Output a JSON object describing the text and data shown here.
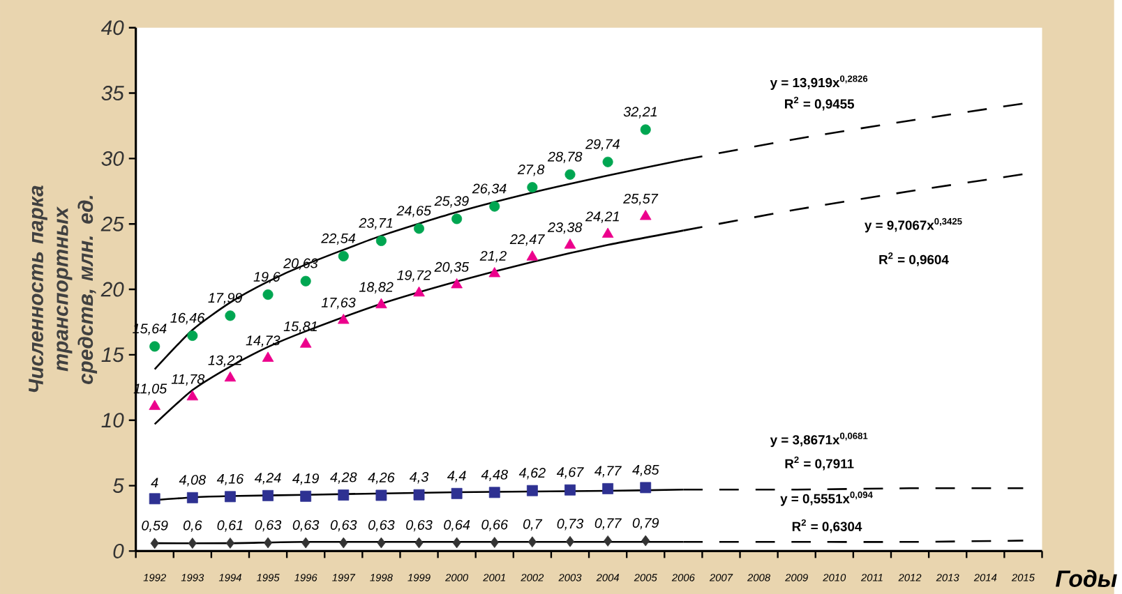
{
  "chart_data": {
    "type": "scatter",
    "xlabel": "Годы",
    "ylabel": "Численность парка транспортных средств, млн. ед.",
    "xlim": [
      1991.5,
      2015.5
    ],
    "ylim": [
      0,
      40
    ],
    "yticks": [
      0,
      5,
      10,
      15,
      20,
      25,
      30,
      35,
      40
    ],
    "xticks": [
      1992,
      1993,
      1994,
      1995,
      1996,
      1997,
      1998,
      1999,
      2000,
      2001,
      2002,
      2003,
      2004,
      2005,
      2006,
      2007,
      2008,
      2009,
      2010,
      2011,
      2012,
      2013,
      2014,
      2015,
      {
        "value": 1991.5,
        "label": null
      },
      {
        "value": 1992.5,
        "label": null
      },
      {
        "value": 1993.5,
        "label": null
      },
      {
        "value": 1994.5,
        "label": null
      },
      {
        "value": 1995.5,
        "label": null
      },
      {
        "value": 1996.5,
        "label": null
      },
      {
        "value": 1997.5,
        "label": null
      },
      {
        "value": 1998.5,
        "label": null
      },
      {
        "value": 1999.5,
        "label": null
      },
      {
        "value": 2000.5,
        "label": null
      },
      {
        "value": 2001.5,
        "label": null
      },
      {
        "value": 2002.5,
        "label": null
      },
      {
        "value": 2003.5,
        "label": null
      },
      {
        "value": 2004.5,
        "label": null
      },
      {
        "value": 2005.5,
        "label": null
      },
      {
        "value": 2006.5,
        "label": null
      },
      {
        "value": 2007.5,
        "label": null
      },
      {
        "value": 2008.5,
        "label": null
      },
      {
        "value": 2009.5,
        "label": null
      },
      {
        "value": 2010.5,
        "label": null
      },
      {
        "value": 2011.5,
        "label": null
      },
      {
        "value": 2012.5,
        "label": null
      },
      {
        "value": 2013.5,
        "label": null
      },
      {
        "value": 2014.5,
        "label": null
      },
      {
        "value": 2015.5,
        "label": null
      }
    ],
    "series": [
      {
        "type": "scatter",
        "marker": "circle",
        "color": "#00a651",
        "x": [
          1992,
          1993,
          1994,
          1995,
          1996,
          1997,
          1998,
          1999,
          2000,
          2001,
          2002,
          2003,
          2004,
          2005
        ],
        "values": [
          15.64,
          16.46,
          17.99,
          19.6,
          20.63,
          22.54,
          23.71,
          24.65,
          25.39,
          26.34,
          27.8,
          28.78,
          29.74,
          32.21
        ],
        "value_labels": [
          "15,64",
          "16,46",
          "17,99",
          "19,6",
          "20,63",
          "22,54",
          "23,71",
          "24,65",
          "25,39",
          "26,34",
          "27,8",
          "28,78",
          "29,74",
          "32,21"
        ]
      },
      {
        "type": "scatter",
        "marker": "triangle",
        "color": "#ec008c",
        "x": [
          1992,
          1993,
          1994,
          1995,
          1996,
          1997,
          1998,
          1999,
          2000,
          2001,
          2002,
          2003,
          2004,
          2005
        ],
        "values": [
          11.05,
          11.78,
          13.22,
          14.73,
          15.81,
          17.63,
          18.82,
          19.72,
          20.35,
          21.2,
          22.47,
          23.38,
          24.21,
          25.57
        ],
        "value_labels": [
          "11,05",
          "11,78",
          "13,22",
          "14,73",
          "15,81",
          "17,63",
          "18,82",
          "19,72",
          "20,35",
          "21,2",
          "22,47",
          "23,38",
          "24,21",
          "25,57"
        ]
      },
      {
        "type": "scatter",
        "marker": "square",
        "color": "#2e3192",
        "x": [
          1992,
          1993,
          1994,
          1995,
          1996,
          1997,
          1998,
          1999,
          2000,
          2001,
          2002,
          2003,
          2004,
          2005
        ],
        "values": [
          4,
          4.08,
          4.16,
          4.24,
          4.19,
          4.28,
          4.26,
          4.3,
          4.4,
          4.48,
          4.62,
          4.67,
          4.77,
          4.85
        ],
        "value_labels": [
          "4",
          "4,08",
          "4,16",
          "4,24",
          "4,19",
          "4,28",
          "4,26",
          "4,3",
          "4,4",
          "4,48",
          "4,62",
          "4,67",
          "4,77",
          "4,85"
        ]
      },
      {
        "type": "scatter",
        "marker": "diamond",
        "color": "#333333",
        "x": [
          1992,
          1993,
          1994,
          1995,
          1996,
          1997,
          1998,
          1999,
          2000,
          2001,
          2002,
          2003,
          2004,
          2005
        ],
        "values": [
          0.59,
          0.6,
          0.61,
          0.63,
          0.63,
          0.63,
          0.63,
          0.63,
          0.64,
          0.66,
          0.7,
          0.73,
          0.77,
          0.79
        ],
        "value_labels": [
          "0,59",
          "0,6",
          "0,61",
          "0,63",
          "0,63",
          "0,63",
          "0,63",
          "0,63",
          "0,64",
          "0,66",
          "0,7",
          "0,73",
          "0,77",
          "0,79"
        ]
      },
      {
        "type": "line",
        "line_style": "solid",
        "color": "#000000",
        "x": [
          1992,
          1993,
          1994,
          1995,
          1996,
          1998,
          2000,
          2002,
          2004,
          2006
        ],
        "values": [
          13.9,
          16.9,
          19.0,
          20.6,
          21.9,
          24.1,
          25.9,
          27.4,
          28.7,
          29.9
        ]
      },
      {
        "type": "line",
        "line_style": "dashed",
        "color": "#000000",
        "x": [
          2006,
          2009,
          2012,
          2015
        ],
        "values": [
          29.9,
          31.5,
          32.9,
          34.2
        ]
      },
      {
        "type": "line",
        "line_style": "solid",
        "color": "#000000",
        "x": [
          1992,
          1993,
          1994,
          1995,
          1996,
          1998,
          2000,
          2002,
          2004,
          2006
        ],
        "values": [
          9.7,
          12.3,
          14.1,
          15.6,
          16.8,
          18.9,
          20.6,
          22.1,
          23.4,
          24.5
        ]
      },
      {
        "type": "line",
        "line_style": "dashed",
        "color": "#000000",
        "x": [
          2006,
          2009,
          2012,
          2015
        ],
        "values": [
          24.5,
          26.1,
          27.5,
          28.8
        ]
      },
      {
        "type": "line",
        "line_style": "solid",
        "color": "#000000",
        "x": [
          1992,
          1993,
          1994,
          1996,
          2000,
          2004,
          2006
        ],
        "values": [
          3.9,
          4.1,
          4.2,
          4.3,
          4.5,
          4.6,
          4.7
        ]
      },
      {
        "type": "line",
        "line_style": "dashed",
        "color": "#000000",
        "x": [
          2006,
          2009,
          2012,
          2015
        ],
        "values": [
          4.7,
          4.7,
          4.8,
          4.8
        ]
      },
      {
        "type": "line",
        "line_style": "solid",
        "color": "#000000",
        "x": [
          1992,
          1994,
          1996,
          2000,
          2006
        ],
        "values": [
          0.6,
          0.6,
          0.7,
          0.7,
          0.7
        ]
      },
      {
        "type": "line",
        "line_style": "dashed",
        "color": "#000000",
        "x": [
          2006,
          2009,
          2012,
          2015
        ],
        "values": [
          0.7,
          0.7,
          0.7,
          0.8
        ]
      }
    ],
    "annotations": [
      "y = 13,919x$^{0,2826}$",
      "R$^{2}$ = 0,9455",
      "y = 9,7067x$^{0,3425}$",
      "R$^{2}$ = 0,9604",
      "y = 3,8671x$^{0,0681}$",
      "R$^{2}$ = 0,7911",
      "y = 0,5551x$^{0,094}$",
      "R$^{2}$ = 0,6304"
    ]
  }
}
